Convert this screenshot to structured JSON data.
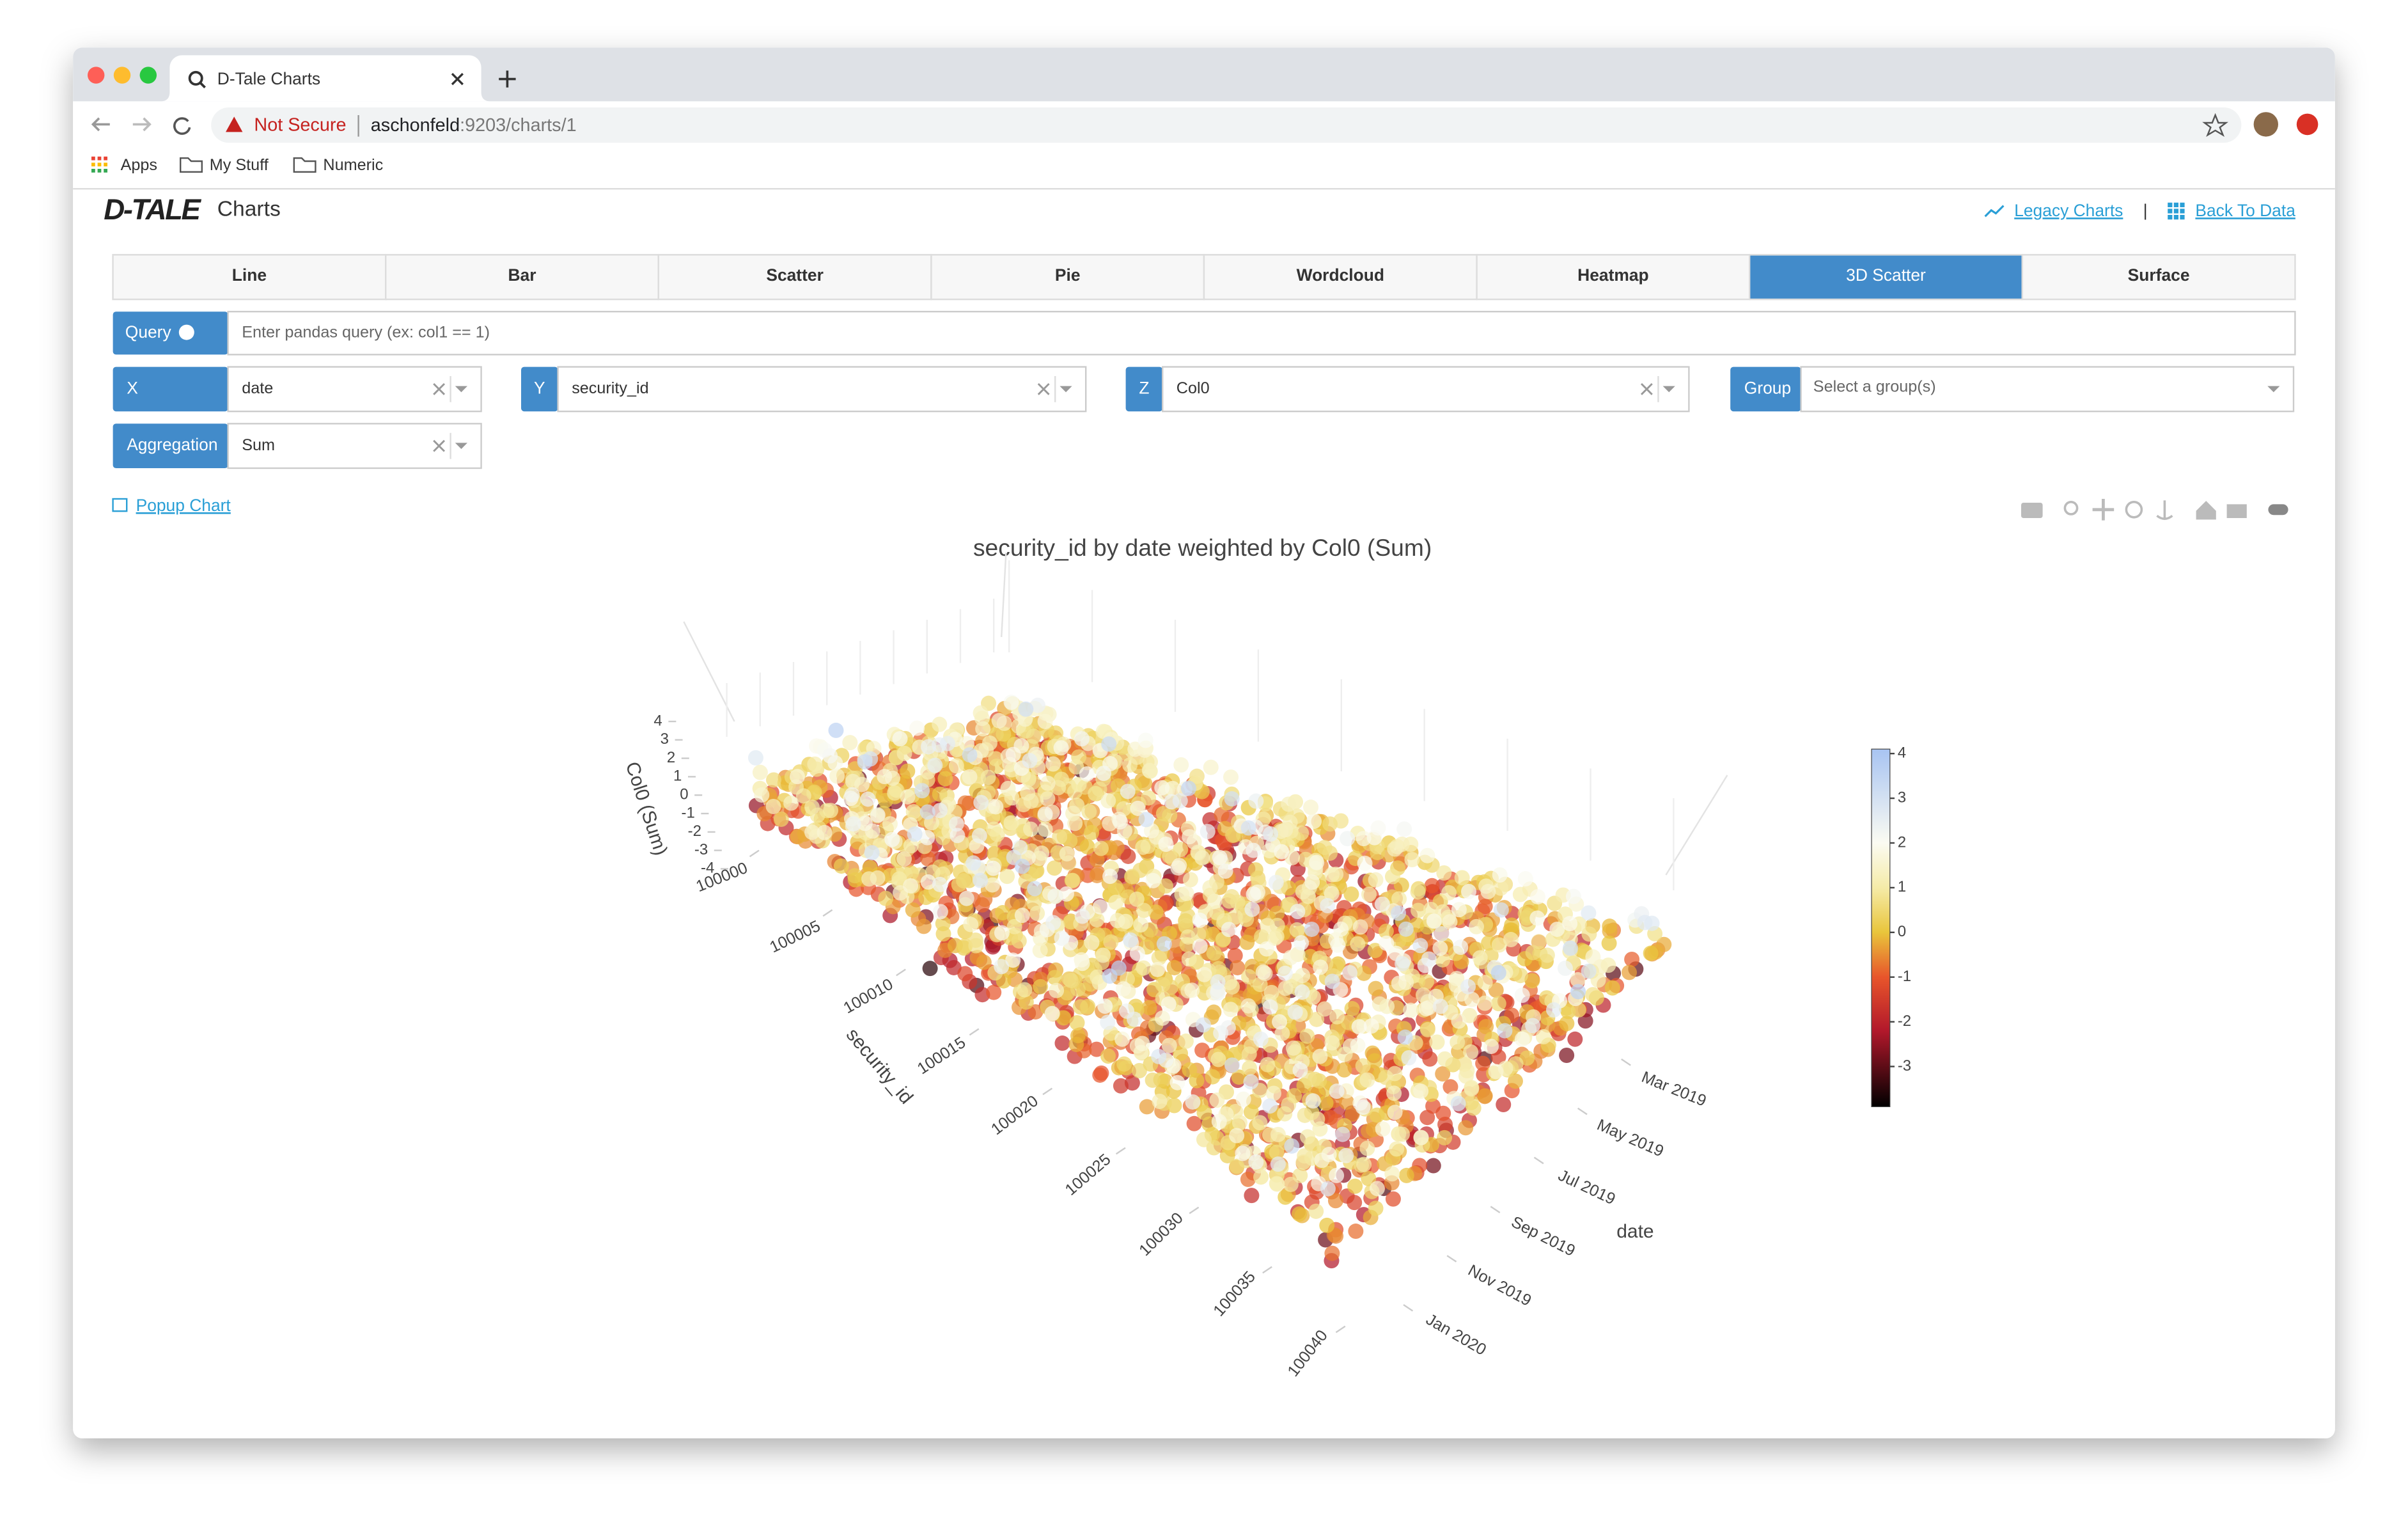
{
  "browser": {
    "tab_title": "D-Tale Charts",
    "security": "Not Secure",
    "url_host": "aschonfeld",
    "url_path": ":9203/charts/1",
    "bookmarks": [
      "Apps",
      "My Stuff",
      "Numeric"
    ]
  },
  "header": {
    "logo": "D-TALE",
    "title": "Charts",
    "links": [
      "Legacy Charts",
      "Back To Data"
    ],
    "separator": "|"
  },
  "tabs": {
    "items": [
      "Line",
      "Bar",
      "Scatter",
      "Pie",
      "Wordcloud",
      "Heatmap",
      "3D Scatter",
      "Surface"
    ],
    "active": 6
  },
  "query": {
    "label": "Query",
    "placeholder": "Enter pandas query (ex: col1 == 1)"
  },
  "selectors": [
    {
      "label": "X",
      "value": "date"
    },
    {
      "label": "Y",
      "value": "security_id"
    },
    {
      "label": "Z",
      "value": "Col0"
    },
    {
      "label": "Group",
      "placeholder": "Select a group(s)"
    },
    {
      "label": "Aggregation",
      "value": "Sum"
    }
  ],
  "popup": "Popup Chart",
  "chart_data": {
    "type": "scatter3d",
    "title": "security_id by date weighted by Col0 (Sum)",
    "x_title": "date",
    "xticks": [
      "Mar 2019",
      "May 2019",
      "Jul 2019",
      "Sep 2019",
      "Nov 2019",
      "Jan 2020"
    ],
    "y_title": "security_id",
    "ylim": [
      100000,
      100040
    ],
    "yticks": [
      100000,
      100005,
      100010,
      100015,
      100020,
      100025,
      100030,
      100035,
      100040
    ],
    "z_title": "Col0 (Sum)",
    "zlim": [
      -4,
      4
    ],
    "zticks": [
      -4,
      -3,
      -2,
      -1,
      0,
      1,
      2,
      3,
      4
    ],
    "colorbar": {
      "range": [
        -3.9,
        4.1
      ],
      "ticks": [
        -3,
        -2,
        -1,
        0,
        1,
        2,
        3,
        4
      ],
      "colorscale": [
        [
          -3.9,
          "#000000"
        ],
        [
          -2.2,
          "#b2182b"
        ],
        [
          -1,
          "#e8552b"
        ],
        [
          0,
          "#e9c53b"
        ],
        [
          1,
          "#f5eba8"
        ],
        [
          2,
          "#fbfbf2"
        ],
        [
          4.1,
          "#a8c4f2"
        ]
      ]
    }
  }
}
